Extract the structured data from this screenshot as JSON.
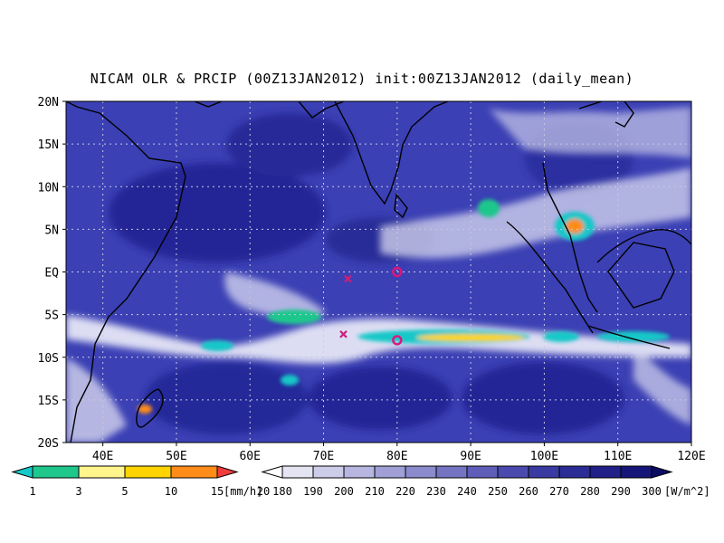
{
  "title": "NICAM OLR & PRCIP (00Z13JAN2012) init:00Z13JAN2012 (daily_mean)",
  "map": {
    "lon_range": [
      35,
      120
    ],
    "lat_range": [
      -20,
      20
    ],
    "lat_labels": [
      "20N",
      "15N",
      "10N",
      "5N",
      "EQ",
      "5S",
      "10S",
      "15S",
      "20S"
    ],
    "lat_values": [
      20,
      15,
      10,
      5,
      0,
      -5,
      -10,
      -15,
      -20
    ],
    "lon_labels": [
      "40E",
      "50E",
      "60E",
      "70E",
      "80E",
      "90E",
      "100E",
      "110E",
      "120E"
    ],
    "lon_values": [
      40,
      50,
      60,
      70,
      80,
      90,
      100,
      110,
      120
    ],
    "grid": true,
    "colors": {
      "ocean_olr": "#3a3fb6",
      "cloud": "#f4f4fb",
      "coastline": "#000000"
    },
    "markers": [
      {
        "type": "x",
        "lon": 73.3,
        "lat": -0.8,
        "color": "#cc1f7a"
      },
      {
        "type": "x",
        "lon": 72.7,
        "lat": -7.3,
        "color": "#cc1f7a"
      },
      {
        "type": "o",
        "lon": 80,
        "lat": 0,
        "color": "#e0157a"
      },
      {
        "type": "o",
        "lon": 80,
        "lat": -8,
        "color": "#e0157a"
      }
    ]
  },
  "precip_colorbar": {
    "labels": [
      "1",
      "3",
      "5",
      "10",
      "15",
      "20"
    ],
    "colors": [
      "#18c8c8",
      "#1fc78c",
      "#fff58c",
      "#ffd400",
      "#ff8c18",
      "#f23c3c"
    ],
    "unit": "[mm/h]"
  },
  "olr_colorbar": {
    "labels": [
      "180",
      "190",
      "200",
      "210",
      "220",
      "230",
      "240",
      "250",
      "260",
      "270",
      "280",
      "290",
      "300"
    ],
    "colors": [
      "#ffffff",
      "#e4e4f2",
      "#cdcdea",
      "#b6b6e0",
      "#a0a0d6",
      "#8a8acc",
      "#7474c2",
      "#5e5eb8",
      "#4a4aae",
      "#3a3aa3",
      "#2c2c96",
      "#202088",
      "#161678",
      "#0c0c66"
    ],
    "unit": "[W/m^2]"
  }
}
